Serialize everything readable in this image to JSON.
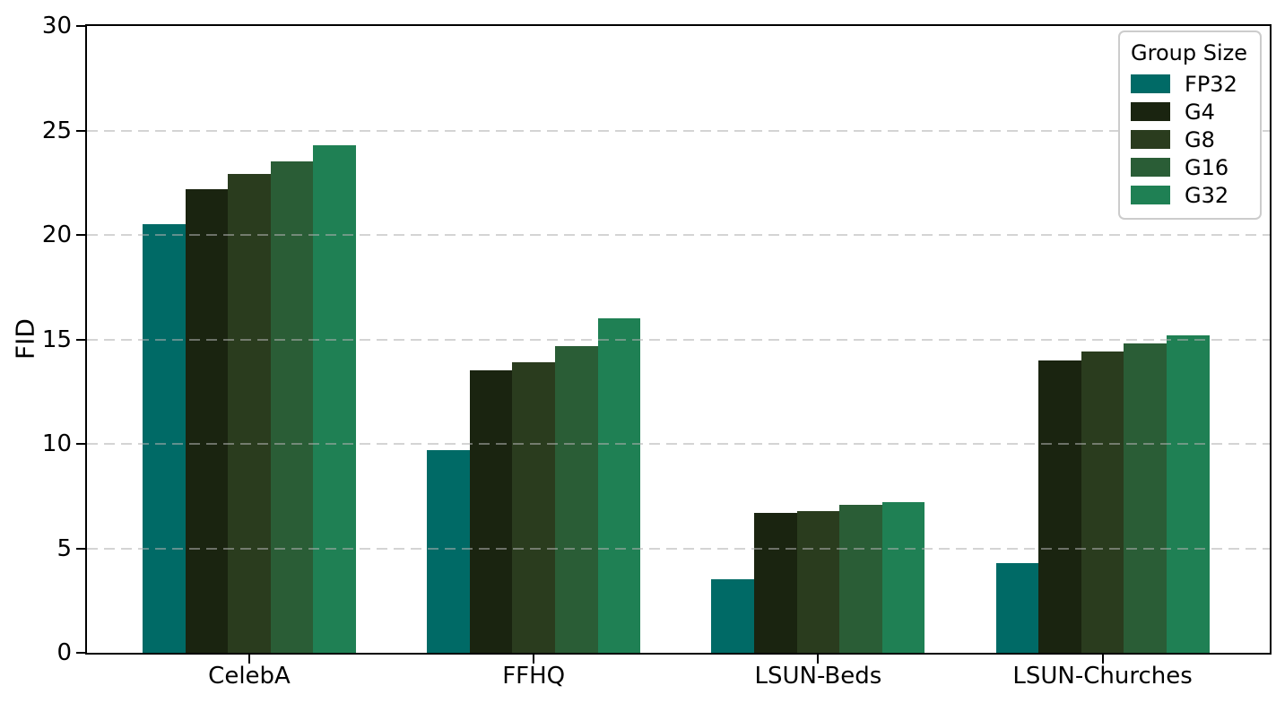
{
  "chart_data": {
    "type": "bar",
    "title": "",
    "xlabel": "",
    "ylabel": "FID",
    "categories": [
      "CelebA",
      "FFHQ",
      "LSUN-Beds",
      "LSUN-Churches"
    ],
    "series": [
      {
        "name": "FP32",
        "color": "#006A66",
        "values": [
          20.5,
          9.7,
          3.5,
          4.3
        ]
      },
      {
        "name": "G4",
        "color": "#1A2410",
        "values": [
          22.2,
          13.5,
          6.7,
          14.0
        ]
      },
      {
        "name": "G8",
        "color": "#2A3C1E",
        "values": [
          22.9,
          13.9,
          6.8,
          14.4
        ]
      },
      {
        "name": "G16",
        "color": "#2A5D36",
        "values": [
          23.5,
          14.7,
          7.1,
          14.8
        ]
      },
      {
        "name": "G32",
        "color": "#1F8054",
        "values": [
          24.3,
          16.0,
          7.2,
          15.2
        ]
      }
    ],
    "legend": {
      "title": "Group Size",
      "position": "upper-right"
    },
    "ylim": [
      0,
      30
    ],
    "yticks": [
      0,
      5,
      10,
      15,
      20,
      25,
      30
    ],
    "grid": {
      "axis": "y",
      "style": "dashed",
      "color": "#b0b0b0"
    },
    "background_color": "#ffffff",
    "spine_color": "#000000"
  }
}
